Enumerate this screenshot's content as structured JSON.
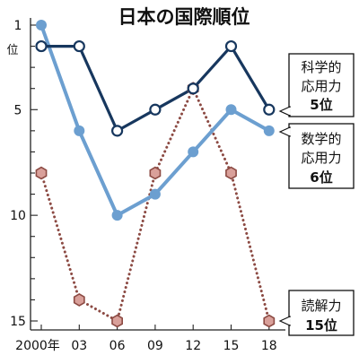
{
  "chart_data": {
    "type": "line",
    "title": "日本の国際順位",
    "x": [
      "2000年",
      "03",
      "06",
      "09",
      "12",
      "15",
      "18"
    ],
    "y_ticks": [
      {
        "value": 1,
        "label": "1"
      },
      {
        "value": 5,
        "label": "5"
      },
      {
        "value": 10,
        "label": "10"
      },
      {
        "value": 15,
        "label": "15"
      }
    ],
    "ylabel_top": "位",
    "ylim": [
      1,
      15
    ],
    "y_inverted": true,
    "grid": false,
    "series": [
      {
        "key": "science",
        "values": [
          2,
          2,
          6,
          5,
          4,
          2,
          5
        ],
        "label_lines": [
          "科学的",
          "応用力",
          "5位"
        ],
        "color": "#17375e",
        "style": "solid",
        "marker": "circle-open"
      },
      {
        "key": "math",
        "values": [
          1,
          6,
          10,
          9,
          7,
          5,
          6
        ],
        "label_lines": [
          "数学的",
          "応用力",
          "6位"
        ],
        "color": "#6c9fd0",
        "style": "solid",
        "marker": "circle-filled"
      },
      {
        "key": "reading",
        "values": [
          8,
          14,
          15,
          8,
          4,
          8,
          15
        ],
        "label_lines": [
          "読解力",
          "15位"
        ],
        "color": "#8c4a43",
        "style": "dotted",
        "marker": "hexagon",
        "marker_fill": "#d9a09a"
      }
    ]
  }
}
